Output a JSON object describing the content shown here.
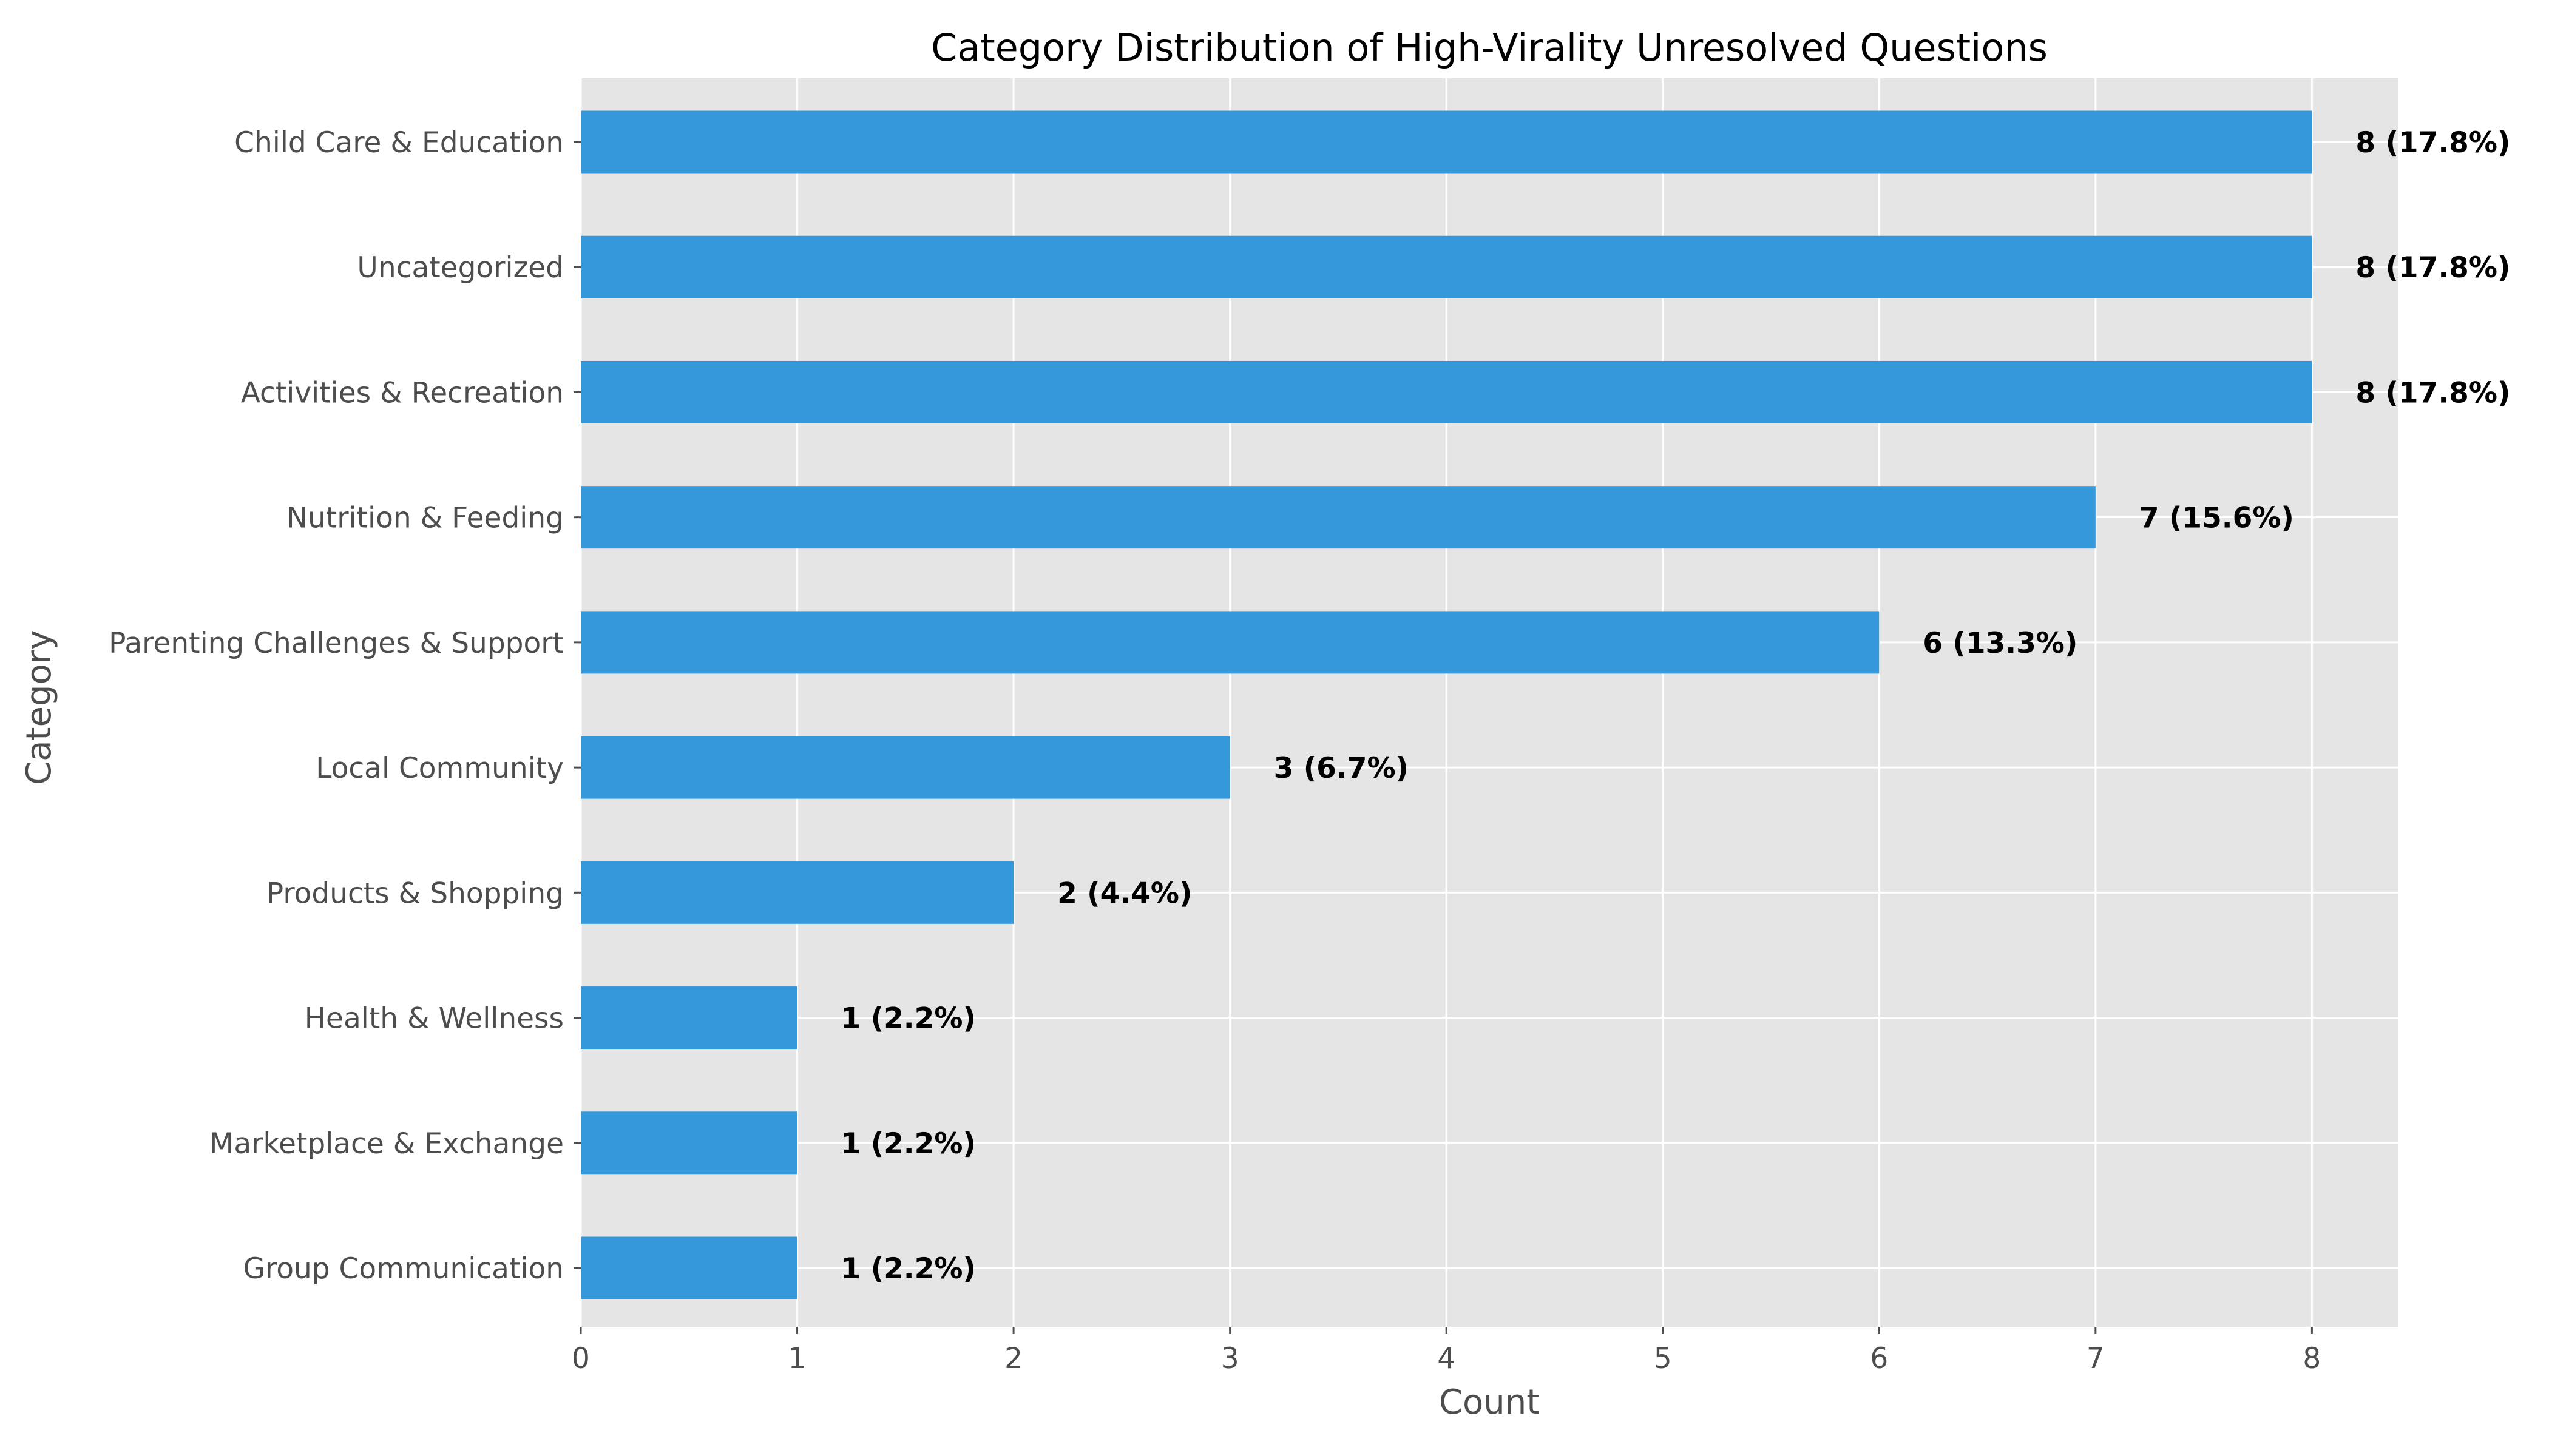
{
  "chart_data": {
    "type": "bar",
    "orientation": "horizontal",
    "title": "Category Distribution of High-Virality Unresolved Questions",
    "xlabel": "Count",
    "ylabel": "Category",
    "categories": [
      "Child Care & Education",
      "Uncategorized",
      "Activities & Recreation",
      "Nutrition & Feeding",
      "Parenting Challenges & Support",
      "Local Community",
      "Products & Shopping",
      "Health & Wellness",
      "Marketplace & Exchange",
      "Group Communication"
    ],
    "values": [
      8,
      8,
      8,
      7,
      6,
      3,
      2,
      1,
      1,
      1
    ],
    "data_labels": [
      "8 (17.8%)",
      "8 (17.8%)",
      "8 (17.8%)",
      "7 (15.6%)",
      "6 (13.3%)",
      "3 (6.7%)",
      "2 (4.4%)",
      "1 (2.2%)",
      "1 (2.2%)",
      "1 (2.2%)"
    ],
    "xticks": [
      "0",
      "1",
      "2",
      "3",
      "4",
      "5",
      "6",
      "7",
      "8"
    ],
    "xlim": [
      0,
      8.4
    ],
    "grid": true,
    "bar_color": "#3598db",
    "plot_background": "#e5e5e5",
    "grid_color": "#ffffff"
  }
}
